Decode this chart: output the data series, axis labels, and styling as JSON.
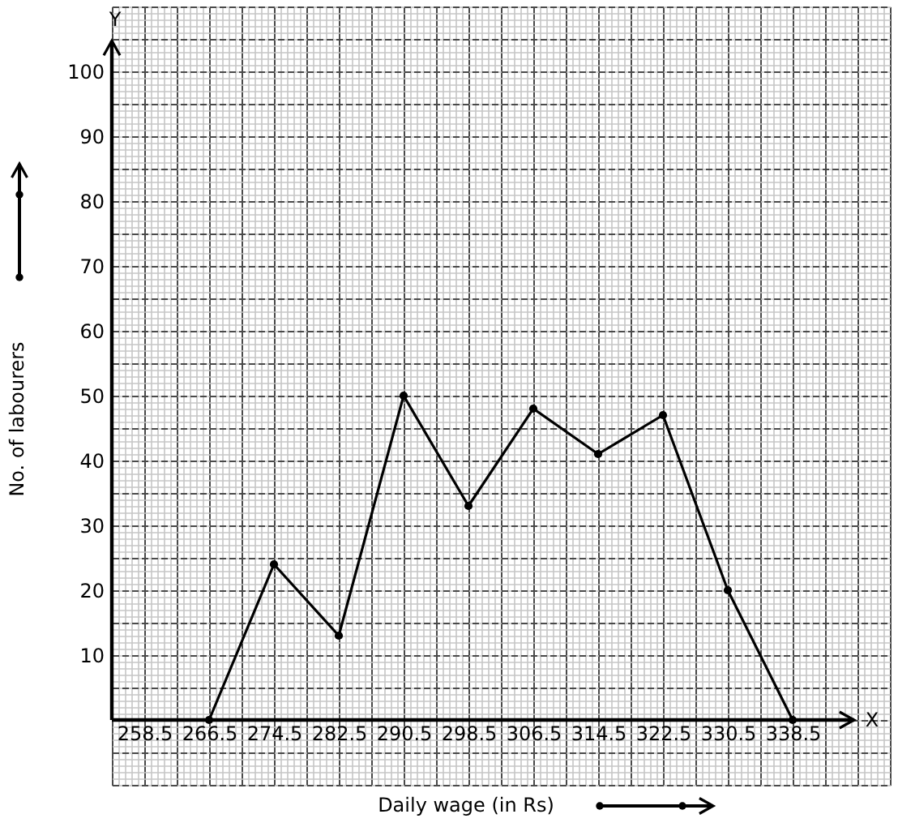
{
  "chart_data": {
    "type": "line",
    "xlabel": "Daily wage (in Rs)",
    "ylabel": "No. of labourers",
    "annotations": [
      "X",
      "Y"
    ],
    "x": [
      266.5,
      274.5,
      282.5,
      290.5,
      298.5,
      306.5,
      314.5,
      322.5,
      330.5,
      338.5
    ],
    "values": [
      0,
      24,
      13,
      50,
      33,
      48,
      41,
      47,
      20,
      0
    ],
    "color": "#000000",
    "marker": "circle",
    "line_style": "solid",
    "xlim": [
      254.5,
      350.5
    ],
    "ylim": [
      -10,
      110
    ],
    "xticks": [
      258.5,
      266.5,
      274.5,
      282.5,
      290.5,
      298.5,
      306.5,
      314.5,
      322.5,
      330.5,
      338.5
    ],
    "yticks": [
      10,
      20,
      30,
      40,
      50,
      60,
      70,
      80,
      90,
      100
    ],
    "grid": true
  }
}
